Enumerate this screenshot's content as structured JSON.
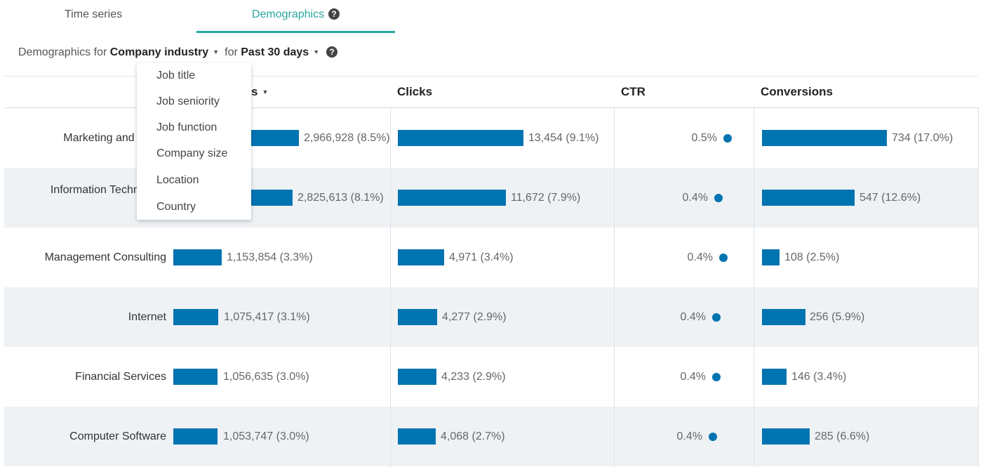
{
  "tabs": {
    "time_series": "Time series",
    "demographics": "Demographics"
  },
  "filter": {
    "prefix": "Demographics for",
    "dimension": "Company industry",
    "for_label": "for",
    "period": "Past 30 days"
  },
  "help_glyph": "?",
  "dropdown": {
    "items": [
      "Job title",
      "Job seniority",
      "Job function",
      "Company size",
      "Location",
      "Country"
    ]
  },
  "table": {
    "columns": {
      "impressions_partial": "s",
      "clicks": "Clicks",
      "ctr": "CTR",
      "conversions": "Conversions"
    },
    "rows": [
      {
        "category": "Marketing and Adver",
        "impressions": "2,966,928 (8.5%)",
        "clicks": "13,454 (9.1%)",
        "ctr": "0.5%",
        "conversions": "734 (17.0%)"
      },
      {
        "category_line1": "Information Technology",
        "category_line2": "Ser",
        "impressions": "2,825,613 (8.1%)",
        "clicks": "11,672 (7.9%)",
        "ctr": "0.4%",
        "conversions": "547 (12.6%)"
      },
      {
        "category": "Management Consulting",
        "impressions": "1,153,854 (3.3%)",
        "clicks": "4,971 (3.4%)",
        "ctr": "0.4%",
        "conversions": "108 (2.5%)"
      },
      {
        "category": "Internet",
        "impressions": "1,075,417 (3.1%)",
        "clicks": "4,277 (2.9%)",
        "ctr": "0.4%",
        "conversions": "256 (5.9%)"
      },
      {
        "category": "Financial Services",
        "impressions": "1,056,635 (3.0%)",
        "clicks": "4,233 (2.9%)",
        "ctr": "0.4%",
        "conversions": "146 (3.4%)"
      },
      {
        "category": "Computer Software",
        "impressions": "1,053,747 (3.0%)",
        "clicks": "4,068 (2.7%)",
        "ctr": "0.4%",
        "conversions": "285 (6.6%)"
      }
    ]
  },
  "colors": {
    "accent": "#2aa6a0",
    "bar": "#0073b1",
    "row_alt": "#eef2f5"
  }
}
